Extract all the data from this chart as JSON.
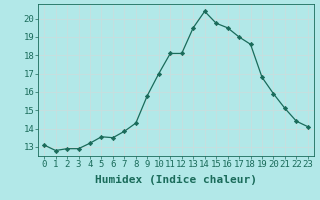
{
  "x": [
    0,
    1,
    2,
    3,
    4,
    5,
    6,
    7,
    8,
    9,
    10,
    11,
    12,
    13,
    14,
    15,
    16,
    17,
    18,
    19,
    20,
    21,
    22,
    23
  ],
  "y": [
    13.1,
    12.8,
    12.9,
    12.9,
    13.2,
    13.55,
    13.5,
    13.85,
    14.3,
    15.8,
    17.0,
    18.1,
    18.1,
    19.5,
    20.4,
    19.75,
    19.5,
    19.0,
    18.6,
    16.8,
    15.9,
    15.1,
    14.4,
    14.1
  ],
  "line_color": "#1a6b5a",
  "marker_color": "#1a6b5a",
  "bg_color": "#b2e8e8",
  "grid_color": "#c8dede",
  "xlabel": "Humidex (Indice chaleur)",
  "xlabel_fontsize": 8,
  "ylabel_ticks": [
    13,
    14,
    15,
    16,
    17,
    18,
    19,
    20
  ],
  "xlim": [
    -0.5,
    23.5
  ],
  "ylim": [
    12.5,
    20.8
  ],
  "xtick_labels": [
    "0",
    "1",
    "2",
    "3",
    "4",
    "5",
    "6",
    "7",
    "8",
    "9",
    "10",
    "11",
    "12",
    "13",
    "14",
    "15",
    "16",
    "17",
    "18",
    "19",
    "20",
    "21",
    "22",
    "23"
  ],
  "tick_fontsize": 6.5,
  "figsize": [
    3.2,
    2.0
  ],
  "dpi": 100
}
